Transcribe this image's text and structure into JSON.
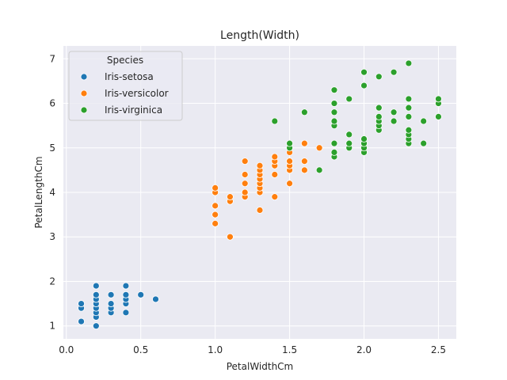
{
  "chart_data": {
    "type": "scatter",
    "title": "Length(Width)",
    "xlabel": "PetalWidthCm",
    "ylabel": "PetalLengthCm",
    "xlim": [
      -0.02,
      2.62
    ],
    "ylim": [
      0.71,
      7.29
    ],
    "xticks": [
      0.0,
      0.5,
      1.0,
      1.5,
      2.0,
      2.5
    ],
    "xtick_labels": [
      "0.0",
      "0.5",
      "1.0",
      "1.5",
      "2.0",
      "2.5"
    ],
    "yticks": [
      1,
      2,
      3,
      4,
      5,
      6,
      7
    ],
    "ytick_labels": [
      "1",
      "2",
      "3",
      "4",
      "5",
      "6",
      "7"
    ],
    "grid": true,
    "legend": {
      "title": "Species",
      "placement": "top-left"
    },
    "background": "#eaeaf2",
    "series": [
      {
        "name": "Iris-setosa",
        "color": "#1f77b4",
        "points": [
          [
            0.1,
            1.1
          ],
          [
            0.1,
            1.4
          ],
          [
            0.1,
            1.5
          ],
          [
            0.2,
            1.0
          ],
          [
            0.2,
            1.2
          ],
          [
            0.2,
            1.3
          ],
          [
            0.2,
            1.4
          ],
          [
            0.2,
            1.5
          ],
          [
            0.2,
            1.6
          ],
          [
            0.2,
            1.7
          ],
          [
            0.2,
            1.9
          ],
          [
            0.3,
            1.3
          ],
          [
            0.3,
            1.4
          ],
          [
            0.3,
            1.5
          ],
          [
            0.3,
            1.7
          ],
          [
            0.4,
            1.3
          ],
          [
            0.4,
            1.5
          ],
          [
            0.4,
            1.6
          ],
          [
            0.4,
            1.7
          ],
          [
            0.4,
            1.9
          ],
          [
            0.5,
            1.7
          ],
          [
            0.6,
            1.6
          ]
        ]
      },
      {
        "name": "Iris-versicolor",
        "color": "#ff7f0e",
        "points": [
          [
            1.0,
            3.3
          ],
          [
            1.0,
            3.5
          ],
          [
            1.0,
            3.7
          ],
          [
            1.0,
            4.0
          ],
          [
            1.0,
            4.1
          ],
          [
            1.1,
            3.0
          ],
          [
            1.1,
            3.8
          ],
          [
            1.1,
            3.9
          ],
          [
            1.2,
            3.9
          ],
          [
            1.2,
            4.0
          ],
          [
            1.2,
            4.2
          ],
          [
            1.2,
            4.4
          ],
          [
            1.2,
            4.7
          ],
          [
            1.3,
            3.6
          ],
          [
            1.3,
            4.0
          ],
          [
            1.3,
            4.1
          ],
          [
            1.3,
            4.2
          ],
          [
            1.3,
            4.3
          ],
          [
            1.3,
            4.4
          ],
          [
            1.3,
            4.5
          ],
          [
            1.3,
            4.6
          ],
          [
            1.4,
            3.9
          ],
          [
            1.4,
            4.4
          ],
          [
            1.4,
            4.6
          ],
          [
            1.4,
            4.7
          ],
          [
            1.4,
            4.8
          ],
          [
            1.5,
            4.2
          ],
          [
            1.5,
            4.5
          ],
          [
            1.5,
            4.6
          ],
          [
            1.5,
            4.7
          ],
          [
            1.5,
            4.9
          ],
          [
            1.5,
            5.0
          ],
          [
            1.6,
            4.5
          ],
          [
            1.6,
            4.7
          ],
          [
            1.6,
            5.1
          ],
          [
            1.7,
            5.0
          ]
        ]
      },
      {
        "name": "Iris-virginica",
        "color": "#2ca02c",
        "points": [
          [
            1.4,
            5.6
          ],
          [
            1.5,
            5.0
          ],
          [
            1.5,
            5.1
          ],
          [
            1.6,
            5.8
          ],
          [
            1.7,
            4.5
          ],
          [
            1.8,
            4.8
          ],
          [
            1.8,
            4.9
          ],
          [
            1.8,
            5.1
          ],
          [
            1.8,
            5.5
          ],
          [
            1.8,
            5.6
          ],
          [
            1.8,
            5.8
          ],
          [
            1.8,
            6.0
          ],
          [
            1.8,
            6.3
          ],
          [
            1.9,
            5.0
          ],
          [
            1.9,
            5.1
          ],
          [
            1.9,
            5.3
          ],
          [
            1.9,
            6.1
          ],
          [
            2.0,
            4.9
          ],
          [
            2.0,
            5.0
          ],
          [
            2.0,
            5.1
          ],
          [
            2.0,
            5.2
          ],
          [
            2.0,
            6.4
          ],
          [
            2.0,
            6.7
          ],
          [
            2.1,
            5.4
          ],
          [
            2.1,
            5.5
          ],
          [
            2.1,
            5.6
          ],
          [
            2.1,
            5.7
          ],
          [
            2.1,
            5.9
          ],
          [
            2.1,
            6.6
          ],
          [
            2.2,
            5.6
          ],
          [
            2.2,
            5.8
          ],
          [
            2.2,
            6.7
          ],
          [
            2.3,
            5.1
          ],
          [
            2.3,
            5.2
          ],
          [
            2.3,
            5.3
          ],
          [
            2.3,
            5.4
          ],
          [
            2.3,
            5.7
          ],
          [
            2.3,
            5.9
          ],
          [
            2.3,
            6.1
          ],
          [
            2.3,
            6.9
          ],
          [
            2.4,
            5.1
          ],
          [
            2.4,
            5.6
          ],
          [
            2.5,
            5.7
          ],
          [
            2.5,
            6.0
          ],
          [
            2.5,
            6.1
          ]
        ]
      }
    ]
  }
}
